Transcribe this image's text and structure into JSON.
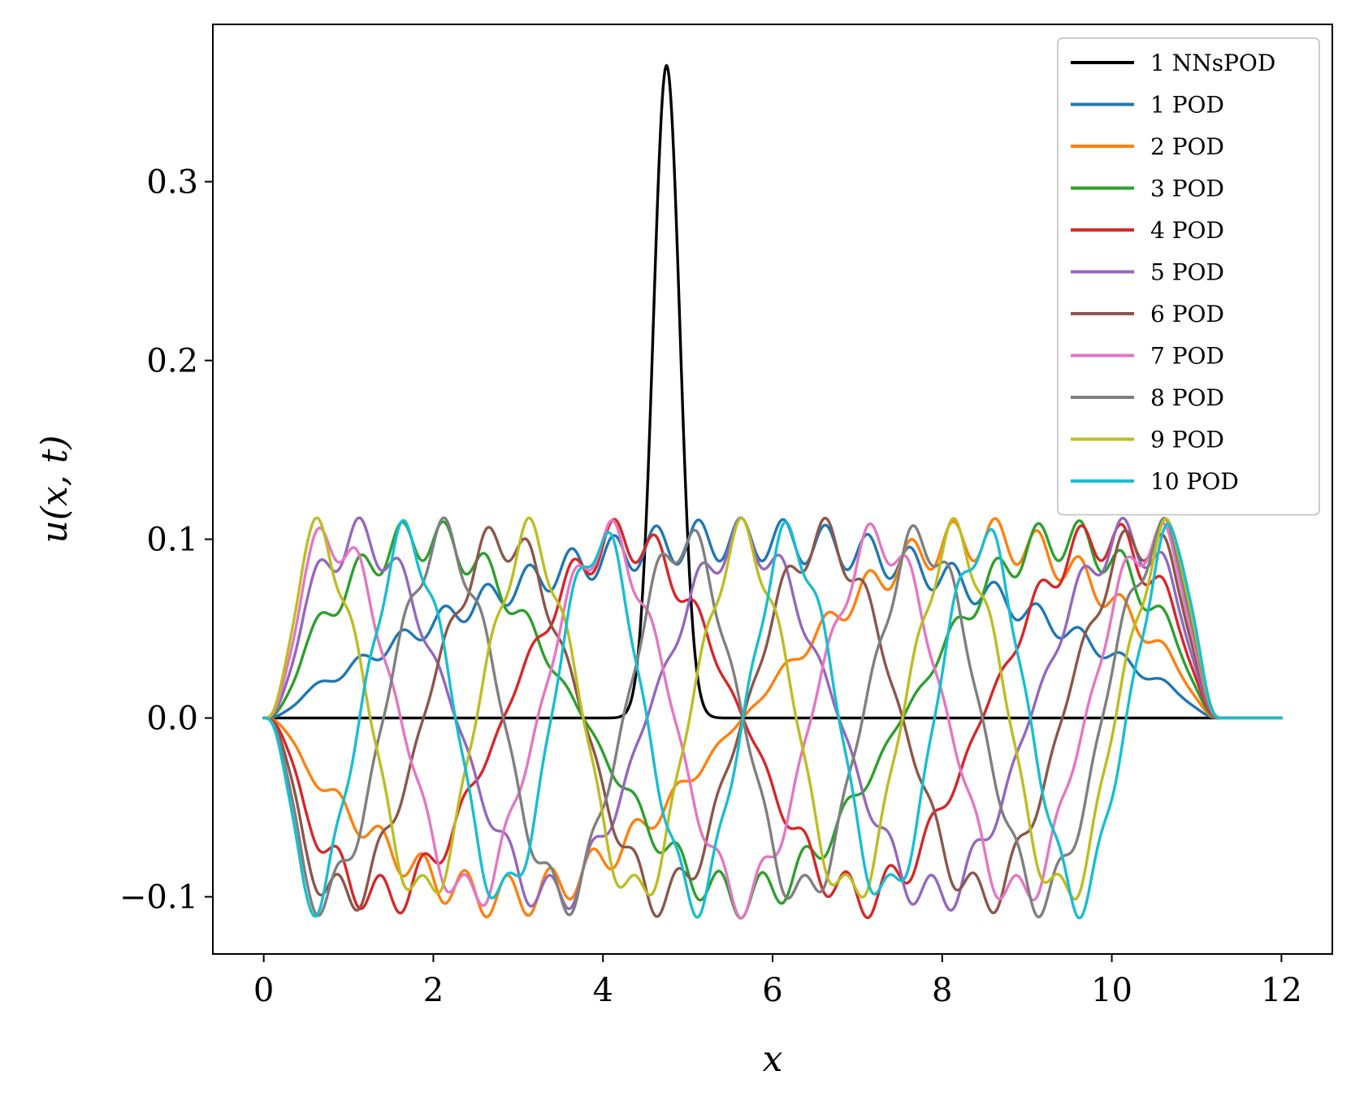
{
  "chart_data": {
    "type": "line",
    "title": "",
    "xlabel": "x",
    "ylabel": "u(x, t)",
    "xlim": [
      -0.6,
      12.6
    ],
    "ylim": [
      -0.132,
      0.388
    ],
    "xticks": [
      0,
      2,
      4,
      6,
      8,
      10,
      12
    ],
    "xtick_labels": [
      "0",
      "2",
      "4",
      "6",
      "8",
      "10",
      "12"
    ],
    "yticks": [
      -0.1,
      0.0,
      0.1,
      0.2,
      0.3
    ],
    "ytick_labels": [
      "−0.1",
      "0.0",
      "0.1",
      "0.2",
      "0.3"
    ],
    "grid": false,
    "legend_position": "top-right",
    "x_range": [
      0,
      12
    ],
    "support": [
      0,
      11.3
    ],
    "series": [
      {
        "name": "1 NNsPOD",
        "color": "#000000",
        "kind": "peak",
        "center": 4.75,
        "peak": 0.365,
        "width": 0.22
      },
      {
        "name": "1 POD",
        "color": "#1f77b4",
        "amplitude": 0.1,
        "mode": 1
      },
      {
        "name": "2 POD",
        "color": "#ff7f0e",
        "amplitude": -0.1,
        "mode": 2
      },
      {
        "name": "3 POD",
        "color": "#2ca02c",
        "amplitude": 0.1,
        "mode": 3
      },
      {
        "name": "4 POD",
        "color": "#d62728",
        "amplitude": -0.1,
        "mode": 4
      },
      {
        "name": "5 POD",
        "color": "#9467bd",
        "amplitude": 0.1,
        "mode": 5
      },
      {
        "name": "6 POD",
        "color": "#8c564b",
        "amplitude": -0.1,
        "mode": 6
      },
      {
        "name": "7 POD",
        "color": "#e377c2",
        "amplitude": 0.1,
        "mode": 7
      },
      {
        "name": "8 POD",
        "color": "#7f7f7f",
        "amplitude": -0.1,
        "mode": 8
      },
      {
        "name": "9 POD",
        "color": "#bcbd22",
        "amplitude": 0.1,
        "mode": 9
      },
      {
        "name": "10 POD",
        "color": "#17becf",
        "amplitude": -0.1,
        "mode": 10
      }
    ]
  }
}
